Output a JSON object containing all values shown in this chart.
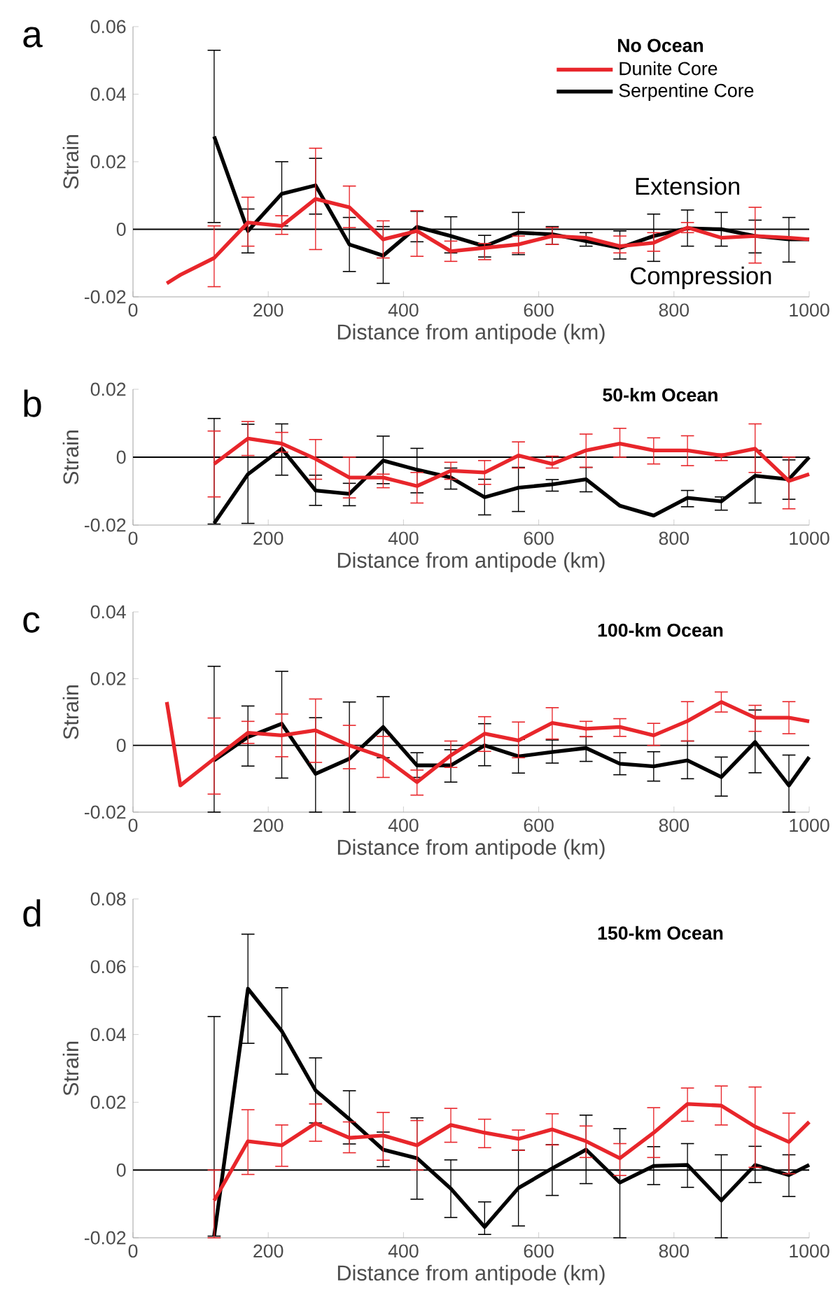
{
  "chart_data": [
    {
      "type": "line",
      "title": "No Ocean",
      "xlabel": "Distance from antipode (km)",
      "ylabel": "Strain",
      "annotations": [
        "a",
        "Extension",
        "Compression"
      ],
      "xlim": [
        0,
        1000
      ],
      "xticks": [
        0,
        200,
        400,
        600,
        800,
        1000
      ],
      "ylim": [
        -0.02,
        0.06
      ],
      "yticks": [
        -0.02,
        0,
        0.02,
        0.04,
        0.06
      ],
      "legend": "top right",
      "marker": "none",
      "ref_lines": [
        {
          "axis": "y",
          "value": 0,
          "color": "#000000"
        }
      ],
      "series": [
        {
          "name": "Dunite Core",
          "color": "#e8262b",
          "x": [
            50,
            70,
            120,
            170,
            220,
            270,
            320,
            370,
            420,
            470,
            520,
            570,
            620,
            670,
            720,
            770,
            820,
            870,
            920,
            970,
            1000
          ],
          "values": [
            -0.016,
            -0.0135,
            -0.0085,
            0.002,
            0.001,
            0.009,
            0.0065,
            -0.003,
            -0.0005,
            -0.0065,
            -0.0055,
            -0.0045,
            -0.002,
            -0.0025,
            -0.005,
            -0.004,
            0.0005,
            -0.0025,
            -0.002,
            -0.0025,
            -0.003
          ],
          "errors": [
            null,
            null,
            [
              -0.017,
              0.001
            ],
            [
              -0.005,
              0.0095
            ],
            [
              -0.0015,
              0.004
            ],
            [
              -0.006,
              0.024
            ],
            [
              0.0005,
              0.0128
            ],
            [
              -0.0085,
              0.0025
            ],
            [
              -0.008,
              0.0055
            ],
            [
              -0.0095,
              -0.0035
            ],
            [
              -0.009,
              -0.0042
            ],
            [
              -0.007,
              -0.002
            ],
            [
              -0.0045,
              0.0005
            ],
            null,
            [
              -0.007,
              -0.002
            ],
            [
              -0.0065,
              -0.001
            ],
            [
              -0.001,
              0.002
            ],
            null,
            [
              -0.01,
              0.0065
            ],
            null,
            null
          ]
        },
        {
          "name": "Serpentine Core",
          "color": "#000000",
          "x": [
            120,
            170,
            220,
            270,
            320,
            370,
            420,
            470,
            520,
            570,
            620,
            670,
            720,
            770,
            820,
            870,
            920,
            970,
            1000
          ],
          "values": [
            0.0275,
            -0.0005,
            0.0105,
            0.013,
            -0.0045,
            -0.0078,
            0.0007,
            -0.002,
            -0.005,
            -0.001,
            -0.0015,
            -0.0035,
            -0.0055,
            -0.002,
            0.0003,
            0,
            -0.002,
            -0.003,
            -0.003
          ],
          "errors": [
            [
              0.002,
              0.053
            ],
            [
              -0.007,
              0.006
            ],
            [
              0.001,
              0.02
            ],
            [
              0.0045,
              0.021
            ],
            [
              -0.0125,
              0.0035
            ],
            [
              -0.016,
              0.0008
            ],
            [
              -0.0037,
              0.0053
            ],
            [
              -0.007,
              0.0037
            ],
            [
              -0.0082,
              -0.0018
            ],
            [
              -0.0075,
              0.005
            ],
            [
              -0.0045,
              0.0008
            ],
            [
              -0.005,
              -0.001
            ],
            [
              -0.0088,
              -0.0005
            ],
            [
              -0.0095,
              0.0045
            ],
            [
              -0.005,
              0.0057
            ],
            [
              -0.005,
              0.005
            ],
            [
              -0.007,
              0.0027
            ],
            [
              -0.0097,
              0.0035
            ],
            null
          ]
        }
      ]
    },
    {
      "type": "line",
      "title": "50-km Ocean",
      "xlabel": "Distance from antipode (km)",
      "ylabel": "Strain",
      "annotations": [
        "b"
      ],
      "xlim": [
        0,
        1000
      ],
      "xticks": [
        0,
        200,
        400,
        600,
        800,
        1000
      ],
      "ylim": [
        -0.02,
        0.02
      ],
      "yticks": [
        -0.02,
        0,
        0.02
      ],
      "marker": "none",
      "ref_lines": [
        {
          "axis": "y",
          "value": 0,
          "color": "#000000"
        }
      ],
      "series": [
        {
          "color": "#e8262b",
          "x": [
            120,
            170,
            220,
            270,
            320,
            370,
            420,
            470,
            520,
            570,
            620,
            670,
            720,
            770,
            820,
            870,
            920,
            970,
            1000
          ],
          "values": [
            -0.002,
            0.0055,
            0.004,
            -0.0005,
            -0.006,
            -0.006,
            -0.0085,
            -0.004,
            -0.0045,
            0.0005,
            -0.002,
            0.002,
            0.004,
            0.002,
            0.002,
            0.0005,
            0.0025,
            -0.007,
            -0.005
          ],
          "errors": [
            [
              -0.0117,
              0.0077
            ],
            [
              0.0005,
              0.0105
            ],
            [
              0.0015,
              0.0073
            ],
            [
              -0.0065,
              0.0052
            ],
            [
              -0.012,
              0
            ],
            [
              -0.009,
              -0.005
            ],
            [
              -0.0135,
              -0.0045
            ],
            [
              -0.0065,
              -0.0015
            ],
            [
              -0.008,
              -0.001
            ],
            [
              -0.0032,
              0.0045
            ],
            [
              -0.0032,
              0.0003
            ],
            [
              -0.003,
              0.0068
            ],
            [
              0,
              0.0085
            ],
            [
              -0.002,
              0.0057
            ],
            [
              -0.0025,
              0.0063
            ],
            [
              -0.001,
              0.001
            ],
            [
              -0.0045,
              0.0098
            ],
            [
              -0.0152,
              0
            ],
            null
          ]
        },
        {
          "color": "#000000",
          "x": [
            120,
            170,
            220,
            270,
            320,
            370,
            420,
            470,
            520,
            570,
            620,
            670,
            720,
            770,
            820,
            870,
            920,
            970,
            1000
          ],
          "values": [
            -0.0195,
            -0.005,
            0.0025,
            -0.0098,
            -0.0108,
            -0.001,
            -0.0037,
            -0.006,
            -0.0118,
            -0.009,
            -0.008,
            -0.0065,
            -0.0143,
            -0.0172,
            -0.012,
            -0.013,
            -0.0055,
            -0.0065,
            0
          ],
          "errors": [
            [
              -0.0197,
              0.0114
            ],
            [
              -0.0195,
              0.0097
            ],
            [
              -0.0053,
              0.0098
            ],
            [
              -0.0142,
              -0.0053
            ],
            [
              -0.0143,
              -0.0077
            ],
            [
              -0.0078,
              0.0062
            ],
            [
              -0.0105,
              0.0026
            ],
            [
              -0.0094,
              -0.0032
            ],
            [
              -0.017,
              -0.0065
            ],
            [
              -0.016,
              -0.003
            ],
            [
              -0.01,
              -0.0066
            ],
            [
              -0.0102,
              -0.003
            ],
            null,
            null,
            [
              -0.0146,
              -0.0098
            ],
            [
              -0.0156,
              -0.0117
            ],
            [
              -0.0135,
              0.002
            ],
            [
              -0.0124,
              -0.0008
            ],
            null
          ]
        }
      ]
    },
    {
      "type": "line",
      "title": "100-km Ocean",
      "xlabel": "Distance from antipode (km)",
      "ylabel": "Strain",
      "annotations": [
        "c"
      ],
      "xlim": [
        0,
        1000
      ],
      "xticks": [
        0,
        200,
        400,
        600,
        800,
        1000
      ],
      "ylim": [
        -0.02,
        0.04
      ],
      "yticks": [
        -0.02,
        0,
        0.02,
        0.04
      ],
      "marker": "none",
      "ref_lines": [
        {
          "axis": "y",
          "value": 0,
          "color": "#000000"
        }
      ],
      "series": [
        {
          "color": "#e8262b",
          "x": [
            50,
            70,
            120,
            170,
            220,
            270,
            320,
            370,
            420,
            470,
            520,
            570,
            620,
            670,
            720,
            770,
            820,
            870,
            920,
            970,
            1000
          ],
          "values": [
            0.013,
            -0.012,
            -0.004,
            0.0038,
            0.003,
            0.0045,
            0,
            -0.0035,
            -0.011,
            -0.003,
            0.0035,
            0.0015,
            0.0067,
            0.005,
            0.0055,
            0.003,
            0.0073,
            0.013,
            0.0083,
            0.0083,
            0.0072
          ],
          "errors": [
            null,
            null,
            [
              -0.0146,
              0.0082
            ],
            [
              0.0006,
              0.0072
            ],
            [
              -0.0034,
              0.0094
            ],
            [
              -0.0051,
              0.0139
            ],
            [
              -0.007,
              0.006
            ],
            [
              -0.0096,
              0.0027
            ],
            [
              -0.0149,
              -0.0074
            ],
            [
              -0.0066,
              0.0013
            ],
            [
              -0.0018,
              0.0086
            ],
            [
              -0.0037,
              0.007
            ],
            [
              0.0019,
              0.0113
            ],
            [
              0.0026,
              0.0072
            ],
            [
              0.0027,
              0.008
            ],
            [
              0,
              0.0066
            ],
            [
              0.0013,
              0.0131
            ],
            [
              0.01,
              0.016
            ],
            [
              0.0042,
              0.012
            ],
            [
              0.0035,
              0.0131
            ],
            null
          ]
        },
        {
          "color": "#000000",
          "x": [
            120,
            170,
            220,
            270,
            320,
            370,
            420,
            470,
            520,
            570,
            620,
            670,
            720,
            770,
            820,
            870,
            920,
            970,
            1000
          ],
          "values": [
            -0.0045,
            0.0025,
            0.0065,
            -0.0085,
            -0.004,
            0.0055,
            -0.006,
            -0.006,
            0,
            -0.0033,
            -0.002,
            -0.0008,
            -0.0055,
            -0.0063,
            -0.0045,
            -0.0095,
            0.001,
            -0.012,
            -0.0035
          ],
          "errors": [
            [
              -0.02,
              0.0237
            ],
            [
              -0.0062,
              0.0118
            ],
            [
              -0.0098,
              0.0222
            ],
            [
              -0.02,
              0.0083
            ],
            [
              -0.02,
              0.013
            ],
            [
              -0.0037,
              0.0146
            ],
            [
              -0.0096,
              -0.0022
            ],
            [
              -0.011,
              -0.0013
            ],
            [
              -0.0061,
              0.0065
            ],
            [
              -0.0083,
              0.0018
            ],
            [
              -0.0053,
              0.0016
            ],
            [
              -0.0048,
              0.0026
            ],
            [
              -0.0088,
              -0.0022
            ],
            [
              -0.0107,
              -0.0019
            ],
            [
              -0.01,
              0.0013
            ],
            [
              -0.0152,
              -0.0035
            ],
            [
              -0.0082,
              0.0106
            ],
            [
              -0.02,
              -0.0029
            ],
            null
          ]
        }
      ]
    },
    {
      "type": "line",
      "title": "150-km Ocean",
      "xlabel": "Distance from antipode (km)",
      "ylabel": "Strain",
      "annotations": [
        "d"
      ],
      "xlim": [
        0,
        1000
      ],
      "xticks": [
        0,
        200,
        400,
        600,
        800,
        1000
      ],
      "ylim": [
        -0.02,
        0.08
      ],
      "yticks": [
        -0.02,
        0,
        0.02,
        0.04,
        0.06,
        0.08
      ],
      "marker": "none",
      "ref_lines": [
        {
          "axis": "y",
          "value": 0,
          "color": "#000000"
        }
      ],
      "series": [
        {
          "color": "#e8262b",
          "x": [
            120,
            170,
            220,
            270,
            320,
            370,
            420,
            470,
            520,
            570,
            620,
            670,
            720,
            770,
            820,
            870,
            920,
            970,
            1000
          ],
          "values": [
            -0.009,
            0.0085,
            0.0073,
            0.0138,
            0.0095,
            0.0102,
            0.0073,
            0.0133,
            0.011,
            0.0092,
            0.012,
            0.0085,
            0.0035,
            0.011,
            0.0195,
            0.019,
            0.0128,
            0.0083,
            0.0142
          ],
          "errors": [
            [
              -0.02,
              0
            ],
            [
              -0.0013,
              0.0178
            ],
            [
              0.0011,
              0.0133
            ],
            [
              0.0085,
              0.0195
            ],
            [
              0.0051,
              0.0142
            ],
            [
              0.0029,
              0.017
            ],
            [
              0,
              0.0146
            ],
            [
              0.0082,
              0.0182
            ],
            [
              0.0066,
              0.015
            ],
            [
              0.0058,
              0.0118
            ],
            [
              0.0074,
              0.0166
            ],
            [
              0.0037,
              0.013
            ],
            [
              -0.0016,
              0.0078
            ],
            [
              0.0037,
              0.0184
            ],
            [
              0.0144,
              0.0242
            ],
            [
              0.0133,
              0.0248
            ],
            [
              0.0008,
              0.0245
            ],
            [
              -0.0011,
              0.0168
            ],
            null
          ]
        },
        {
          "color": "#000000",
          "x": [
            120,
            170,
            220,
            270,
            320,
            370,
            420,
            470,
            520,
            570,
            620,
            670,
            720,
            770,
            820,
            870,
            920,
            970,
            1000
          ],
          "values": [
            -0.0195,
            0.0535,
            0.041,
            0.0235,
            0.015,
            0.006,
            0.0035,
            -0.0055,
            -0.0168,
            -0.0053,
            0.0005,
            0.006,
            -0.0037,
            0.0012,
            0.0015,
            -0.009,
            0.0015,
            -0.0015,
            0.0015
          ],
          "errors": [
            [
              -0.0195,
              0.0453
            ],
            [
              0.0374,
              0.0696
            ],
            [
              0.0283,
              0.0538
            ],
            [
              0.0139,
              0.0331
            ],
            [
              0.0077,
              0.0234
            ],
            [
              0.001,
              0.0112
            ],
            [
              -0.0086,
              0.0154
            ],
            [
              -0.014,
              0.003
            ],
            [
              -0.019,
              -0.0094
            ],
            [
              -0.0165,
              0.0059
            ],
            [
              -0.0075,
              0.0075
            ],
            [
              -0.004,
              0.0162
            ],
            [
              -0.02,
              0.0122
            ],
            [
              -0.0043,
              0.0069
            ],
            [
              -0.0051,
              0.0078
            ],
            [
              -0.02,
              0.0045
            ],
            [
              -0.0037,
              0.007
            ],
            [
              -0.0078,
              0.0045
            ],
            null
          ]
        }
      ]
    }
  ]
}
